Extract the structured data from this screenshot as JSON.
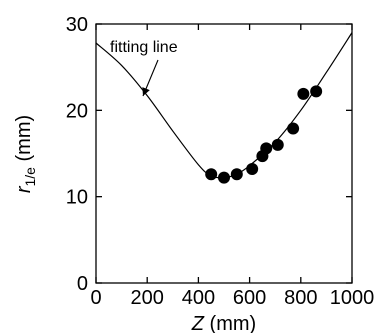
{
  "chart_data": {
    "type": "scatter",
    "xlabel_var": "Z",
    "xlabel_unit": " (mm)",
    "ylabel_var": "r",
    "ylabel_sub": "1/e",
    "ylabel_unit": " (mm)",
    "xlim": [
      0,
      1000
    ],
    "ylim": [
      0,
      30
    ],
    "x_ticks": [
      0,
      200,
      400,
      600,
      800,
      1000
    ],
    "y_ticks": [
      0,
      10,
      20,
      30
    ],
    "grid": false,
    "series": [
      {
        "kind": "points",
        "x": [
          450,
          500,
          550,
          610,
          650,
          665,
          710,
          770,
          810,
          860
        ],
        "y": [
          12.6,
          12.2,
          12.6,
          13.2,
          14.7,
          15.6,
          16.0,
          17.9,
          21.9,
          22.2
        ]
      },
      {
        "kind": "fit",
        "name": "fitting line",
        "x": [
          0,
          100,
          200,
          300,
          400,
          450,
          500,
          550,
          600,
          700,
          800,
          900,
          1000
        ],
        "y": [
          27.8,
          25.2,
          21.7,
          17.6,
          13.7,
          12.4,
          12.2,
          12.6,
          13.6,
          16.3,
          20.0,
          24.4,
          29.0
        ]
      }
    ],
    "annotations": [
      {
        "text": "fitting line",
        "points_to": {
          "x": 310,
          "y": 16.5
        }
      }
    ],
    "colors": {
      "marker": "#000000",
      "line": "#000000",
      "axis": "#000000"
    }
  }
}
